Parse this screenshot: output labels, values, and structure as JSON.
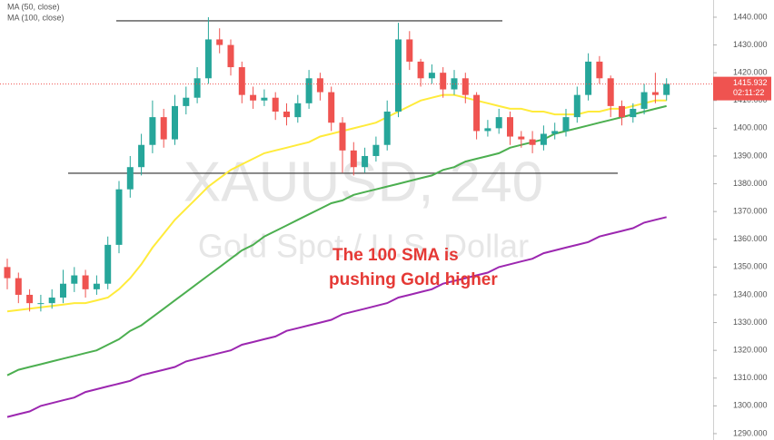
{
  "chart_data": {
    "type": "candlestick",
    "watermark_title": "XAUUSD, 240",
    "watermark_subtitle": "Gold Spot / U.S. Dollar",
    "annotation": [
      "The 100 SMA is",
      "pushing Gold higher"
    ],
    "annotation_color": "#e53935",
    "up_color": "#26a69a",
    "down_color": "#ef5350",
    "grid": false,
    "categories": [
      null,
      null,
      null,
      null,
      null,
      null,
      null,
      null,
      null,
      null,
      null,
      null,
      null,
      null,
      null,
      null,
      null,
      null,
      null,
      null,
      null,
      null,
      null,
      null,
      null,
      null,
      null,
      null,
      null,
      null,
      null,
      null,
      null,
      null,
      null,
      null,
      null,
      null,
      null,
      null,
      null,
      null,
      null,
      null,
      null,
      null,
      null,
      null,
      null,
      null,
      null,
      null,
      null,
      null,
      null,
      null,
      null,
      null,
      null,
      null
    ],
    "open": [
      1350,
      1346,
      1340,
      1337,
      1337,
      1339,
      1344,
      1347,
      1342,
      1344,
      1358,
      1378,
      1386,
      1394,
      1404,
      1396,
      1408,
      1411,
      1418,
      1432,
      1430,
      1422,
      1412,
      1410,
      1411,
      1406,
      1404,
      1409,
      1418,
      1413,
      1402,
      1392,
      1386,
      1390,
      1394,
      1406,
      1432,
      1424,
      1418,
      1420,
      1414,
      1418,
      1412,
      1399,
      1400,
      1404,
      1397,
      1396,
      1394,
      1398,
      1399,
      1404,
      1412,
      1424,
      1418,
      1408,
      1404,
      1407,
      1413,
      1412
    ],
    "high": [
      1353,
      1348,
      1342,
      1340,
      1342,
      1349,
      1350,
      1349,
      1347,
      1361,
      1381,
      1390,
      1398,
      1410,
      1407,
      1412,
      1415,
      1422,
      1440,
      1436,
      1432,
      1424,
      1415,
      1414,
      1413,
      1409,
      1412,
      1421,
      1420,
      1415,
      1404,
      1395,
      1393,
      1397,
      1410,
      1438,
      1435,
      1425,
      1423,
      1422,
      1421,
      1420,
      1413,
      1403,
      1407,
      1406,
      1399,
      1399,
      1401,
      1402,
      1407,
      1415,
      1427,
      1426,
      1419,
      1410,
      1409,
      1416,
      1420,
      1418
    ],
    "low": [
      1342,
      1337,
      1334,
      1334,
      1335,
      1337,
      1341,
      1339,
      1340,
      1342,
      1355,
      1375,
      1383,
      1391,
      1393,
      1394,
      1405,
      1409,
      1416,
      1427,
      1419,
      1409,
      1407,
      1408,
      1403,
      1401,
      1402,
      1407,
      1410,
      1399,
      1384,
      1383,
      1384,
      1388,
      1392,
      1404,
      1421,
      1415,
      1416,
      1411,
      1412,
      1409,
      1396,
      1397,
      1398,
      1394,
      1393,
      1391,
      1392,
      1396,
      1397,
      1402,
      1410,
      1416,
      1404,
      1401,
      1402,
      1405,
      1409,
      1410
    ],
    "close": [
      1346,
      1340,
      1337,
      1337,
      1339,
      1344,
      1347,
      1342,
      1344,
      1358,
      1378,
      1386,
      1394,
      1404,
      1396,
      1408,
      1411,
      1418,
      1432,
      1430,
      1422,
      1412,
      1410,
      1411,
      1406,
      1404,
      1409,
      1418,
      1413,
      1402,
      1392,
      1386,
      1390,
      1394,
      1406,
      1432,
      1424,
      1418,
      1420,
      1414,
      1418,
      1412,
      1399,
      1400,
      1404,
      1397,
      1396,
      1394,
      1398,
      1399,
      1404,
      1412,
      1424,
      1418,
      1408,
      1404,
      1407,
      1413,
      1412,
      1416
    ],
    "series": [
      {
        "name": "MA (50, close)",
        "color": "#ffeb3b",
        "values": [
          1334,
          1334.5,
          1335,
          1335.5,
          1336,
          1336.5,
          1337,
          1337,
          1338,
          1339,
          1342,
          1346,
          1351,
          1357,
          1362,
          1367,
          1371,
          1375,
          1379,
          1382,
          1385,
          1387,
          1389,
          1391,
          1392,
          1393,
          1394,
          1395,
          1397,
          1398,
          1399,
          1400,
          1401,
          1402,
          1404,
          1406,
          1408,
          1410,
          1411,
          1412,
          1412,
          1411,
          1410,
          1409,
          1408,
          1407,
          1407,
          1406,
          1406,
          1405,
          1405,
          1405,
          1406,
          1406,
          1407,
          1407,
          1408,
          1409,
          1410,
          1410
        ]
      },
      {
        "name": "MA (100, close)",
        "color": "#4caf50",
        "values": [
          1311,
          1313,
          1314,
          1315,
          1316,
          1317,
          1318,
          1319,
          1320,
          1322,
          1324,
          1327,
          1329,
          1332,
          1335,
          1338,
          1341,
          1344,
          1347,
          1350,
          1353,
          1356,
          1358,
          1361,
          1363,
          1365,
          1367,
          1369,
          1371,
          1373,
          1374,
          1376,
          1377,
          1378,
          1379,
          1380,
          1381,
          1382,
          1383,
          1385,
          1386,
          1388,
          1389,
          1390,
          1391,
          1393,
          1394,
          1395,
          1396,
          1398,
          1399,
          1400,
          1401,
          1402,
          1403,
          1404,
          1405,
          1406,
          1407,
          1408
        ]
      },
      {
        "color": "#9c27b0",
        "values": [
          1296,
          1297,
          1298,
          1300,
          1301,
          1302,
          1303,
          1305,
          1306,
          1307,
          1308,
          1309,
          1311,
          1312,
          1313,
          1314,
          1316,
          1317,
          1318,
          1319,
          1320,
          1322,
          1323,
          1324,
          1325,
          1327,
          1328,
          1329,
          1330,
          1331,
          1333,
          1334,
          1335,
          1336,
          1337,
          1339,
          1340,
          1341,
          1342,
          1344,
          1345,
          1346,
          1347,
          1348,
          1350,
          1351,
          1352,
          1353,
          1355,
          1356,
          1357,
          1358,
          1359,
          1361,
          1362,
          1363,
          1364,
          1366,
          1367,
          1368
        ]
      }
    ],
    "levels": [
      1438.7,
      1383.8
    ],
    "last_price": 1415.932,
    "countdown": "02:11:22",
    "ylim": [
      1287.7,
      1446.2
    ],
    "yticks": [
      {
        "value": 1290,
        "label": "1290.000"
      },
      {
        "value": 1300,
        "label": "1300.000"
      },
      {
        "value": 1310,
        "label": "1310.000"
      },
      {
        "value": 1320,
        "label": "1320.000"
      },
      {
        "value": 1330,
        "label": "1330.000"
      },
      {
        "value": 1340,
        "label": "1340.000"
      },
      {
        "value": 1350,
        "label": "1350.000"
      },
      {
        "value": 1360,
        "label": "1360.000"
      },
      {
        "value": 1370,
        "label": "1370.000"
      },
      {
        "value": 1380,
        "label": "1380.000"
      },
      {
        "value": 1390,
        "label": "1390.000"
      },
      {
        "value": 1400,
        "label": "1400.000"
      },
      {
        "value": 1410,
        "label": "1410.000"
      },
      {
        "value": 1420,
        "label": "1420.000"
      },
      {
        "value": 1430,
        "label": "1430.000"
      },
      {
        "value": 1440,
        "label": "1440.000"
      }
    ]
  }
}
